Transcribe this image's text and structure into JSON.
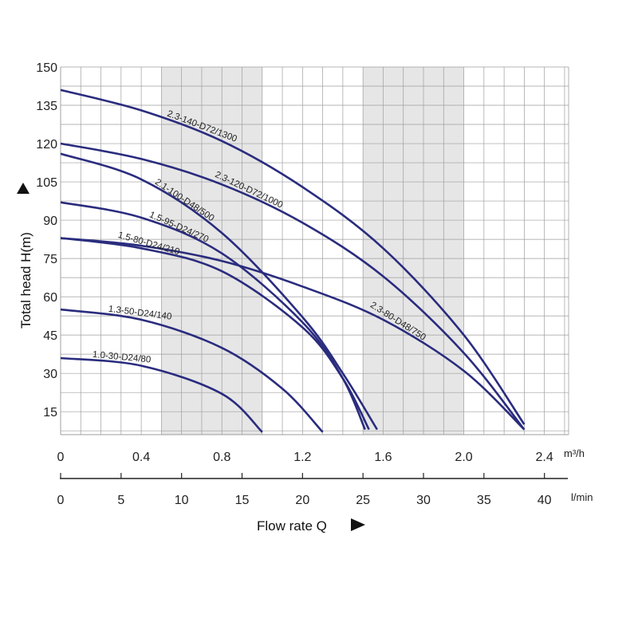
{
  "chart_data": {
    "type": "line",
    "xlabel": "Flow rate Q",
    "ylabel": "Total head H(m)",
    "x_unit_primary": "m³/h",
    "x_unit_secondary": "l/min",
    "xlim": [
      0,
      2.52
    ],
    "ylim": [
      6,
      150
    ],
    "x_ticks_primary": [
      "0",
      "0.4",
      "0.8",
      "1.2",
      "1.6",
      "2.0",
      "2.4"
    ],
    "x_ticks_secondary": [
      "0",
      "5",
      "10",
      "15",
      "20",
      "25",
      "30",
      "35",
      "40"
    ],
    "y_ticks": [
      "15",
      "30",
      "45",
      "60",
      "75",
      "90",
      "105",
      "120",
      "135",
      "150"
    ],
    "grid": true,
    "shaded_bands": [
      [
        0.5,
        1.0
      ],
      [
        1.5,
        2.0
      ]
    ],
    "series": [
      {
        "name": "2.3-140-D72/1300",
        "x": [
          0,
          0.4,
          0.8,
          1.2,
          1.6,
          2.0,
          2.3
        ],
        "y": [
          141,
          133,
          121,
          103,
          79,
          45,
          10
        ]
      },
      {
        "name": "2.3-120-D72/1000",
        "x": [
          0,
          0.4,
          0.8,
          1.2,
          1.6,
          2.0,
          2.3
        ],
        "y": [
          120,
          114,
          104,
          89,
          68,
          38,
          8
        ]
      },
      {
        "name": "2.1-100-D48/500",
        "x": [
          0,
          0.4,
          0.8,
          1.2,
          1.4,
          1.57
        ],
        "y": [
          116,
          106,
          85,
          52,
          30,
          8
        ]
      },
      {
        "name": "1.5-95-D24/270",
        "x": [
          0,
          0.4,
          0.8,
          1.2,
          1.4,
          1.51
        ],
        "y": [
          97,
          91,
          77,
          50,
          28,
          8
        ]
      },
      {
        "name": "2.3-80-D48/750",
        "x": [
          0,
          0.4,
          0.8,
          1.2,
          1.6,
          2.0,
          2.3
        ],
        "y": [
          83,
          80,
          74,
          64,
          51,
          31,
          8
        ]
      },
      {
        "name": "1.5-80-D24/210",
        "x": [
          0,
          0.4,
          0.8,
          1.2,
          1.4,
          1.53
        ],
        "y": [
          83,
          79,
          70,
          48,
          28,
          8
        ]
      },
      {
        "name": "1.3-50-D24/140",
        "x": [
          0,
          0.4,
          0.8,
          1.1,
          1.3
        ],
        "y": [
          55,
          51,
          40,
          24,
          7
        ]
      },
      {
        "name": "1.0-30-D24/80",
        "x": [
          0,
          0.4,
          0.8,
          1.0
        ],
        "y": [
          36,
          33,
          22,
          7
        ]
      }
    ],
    "colors": {
      "curve": "#2a2c7e",
      "grid": "#9e9e9e",
      "band": "#e6e6e6"
    }
  }
}
